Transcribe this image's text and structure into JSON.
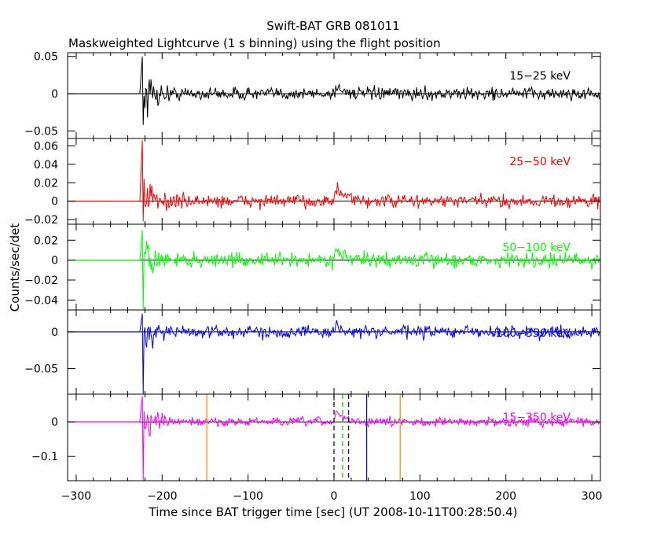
{
  "title": "Swift-BAT GRB 081011",
  "subtitle": "Maskweighted Lightcurve (1 s binning) using the flight position",
  "chart_data": {
    "type": "line",
    "xlabel": "Time since BAT trigger time [sec] (UT 2008-10-11T00:28:50.4)",
    "ylabel": "Counts/sec/det",
    "xlim": [
      -310,
      310
    ],
    "xticks": [
      -300,
      -200,
      -100,
      0,
      100,
      200,
      300
    ],
    "x_start": -310,
    "data_start": -223,
    "x_end": 309,
    "panels": [
      {
        "label": "15−25 keV",
        "color": "#000000",
        "ylim": [
          -0.06,
          0.055
        ],
        "yticks": [
          -0.05,
          0,
          0.05
        ],
        "ytick_labels": [
          "−0.05",
          "0",
          "0.05"
        ],
        "noise": 0.006,
        "spike_hi": 0.05,
        "spike_lo": -0.042,
        "burst_peak": 0.012
      },
      {
        "label": "25−50 keV",
        "color": "#ff0000",
        "ylim": [
          -0.025,
          0.068
        ],
        "yticks": [
          -0.02,
          0,
          0.02,
          0.04,
          0.06
        ],
        "ytick_labels": [
          "−0.02",
          "0",
          "0.02",
          "0.04",
          "0.06"
        ],
        "noise": 0.005,
        "spike_hi": 0.066,
        "spike_lo": -0.022,
        "burst_peak": 0.018
      },
      {
        "label": "50−100 keV",
        "color": "#00ff00",
        "ylim": [
          -0.05,
          0.036
        ],
        "yticks": [
          -0.04,
          -0.02,
          0,
          0.02
        ],
        "ytick_labels": [
          "−0.04",
          "−0.02",
          "0",
          "0.02"
        ],
        "noise": 0.005,
        "spike_hi": 0.03,
        "spike_lo": -0.05,
        "burst_peak": 0.015
      },
      {
        "label": "100−350 keV",
        "color": "#0000ff",
        "ylim": [
          -0.085,
          0.03
        ],
        "yticks": [
          -0.05,
          0
        ],
        "ytick_labels": [
          "−0.05",
          "0"
        ],
        "noise": 0.006,
        "spike_hi": 0.025,
        "spike_lo": -0.085,
        "burst_peak": 0.01
      },
      {
        "label": "15−350 keV",
        "color": "#ff00ff",
        "ylim": [
          -0.17,
          0.08
        ],
        "yticks": [
          -0.1,
          0
        ],
        "ytick_labels": [
          "−0.1",
          "0"
        ],
        "noise": 0.009,
        "spike_hi": 0.075,
        "spike_lo": -0.17,
        "burst_peak": 0.04,
        "markers": [
          {
            "x": -148,
            "color": "#ff8800",
            "style": "solid"
          },
          {
            "x": 0,
            "color": "#000000",
            "style": "dashed"
          },
          {
            "x": 10,
            "color": "#00cc00",
            "style": "dashed"
          },
          {
            "x": 17,
            "color": "#000000",
            "style": "dashed"
          },
          {
            "x": 38,
            "color": "#0000ff",
            "style": "solid"
          },
          {
            "x": 77,
            "color": "#ff8800",
            "style": "solid"
          }
        ]
      }
    ]
  }
}
